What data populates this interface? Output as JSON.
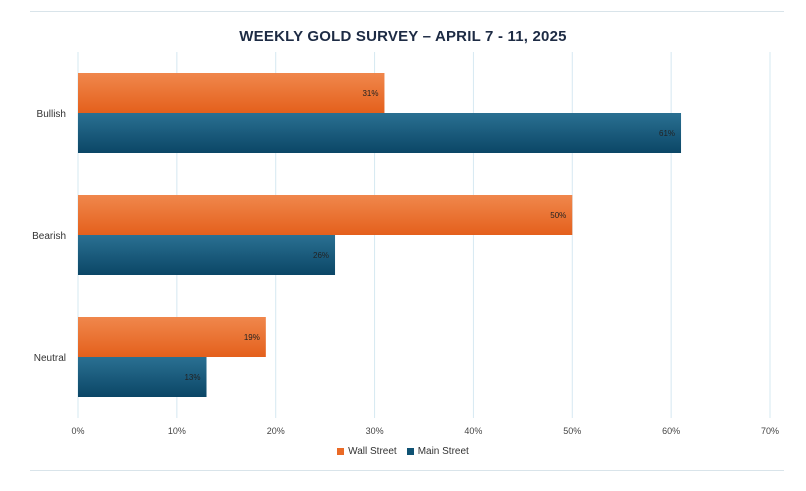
{
  "chart_data": {
    "type": "bar",
    "orientation": "horizontal",
    "title": "WEEKLY GOLD SURVEY – APRIL 7 - 11, 2025",
    "categories": [
      "Bullish",
      "Bearish",
      "Neutral"
    ],
    "series": [
      {
        "name": "Wall Street",
        "values": [
          31,
          50,
          19
        ],
        "labels": [
          "31%",
          "50%",
          "19%"
        ],
        "color": "#ea6a26"
      },
      {
        "name": "Main Street",
        "values": [
          61,
          26,
          13
        ],
        "labels": [
          "61%",
          "26%",
          "13%"
        ],
        "color": "#0f5273"
      }
    ],
    "xlim": [
      0,
      70
    ],
    "x_ticks": [
      "0%",
      "10%",
      "20%",
      "30%",
      "40%",
      "50%",
      "60%",
      "70%"
    ],
    "grid": "vertical",
    "legend": "bottom-center"
  }
}
